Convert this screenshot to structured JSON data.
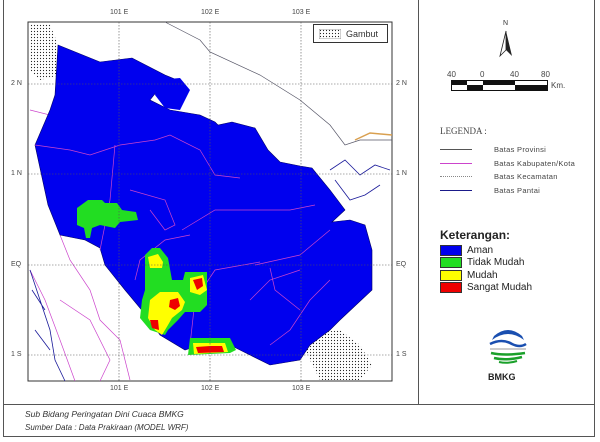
{
  "map": {
    "lon_labels": [
      "101 E",
      "102 E",
      "103 E"
    ],
    "lat_labels": [
      "2 N",
      "1 N",
      "EQ",
      "1 S"
    ],
    "inset_legend": {
      "label": "Gambut"
    }
  },
  "north_arrow": {
    "label": "N"
  },
  "scale_bar": {
    "ticks": [
      "40",
      "0",
      "40",
      "80"
    ],
    "unit": "Km."
  },
  "legenda": {
    "title": "LEGENDA :",
    "items": [
      {
        "label": "Batas Provinsi",
        "color": "#555555",
        "style": "solid"
      },
      {
        "label": "Batas Kabupaten/Kota",
        "color": "#cc44cc",
        "style": "solid"
      },
      {
        "label": "Batas Kecamatan",
        "color": "#888888",
        "style": "dotted"
      },
      {
        "label": "Batas Pantai",
        "color": "#1a1a8a",
        "style": "solid"
      }
    ]
  },
  "keterangan": {
    "title": "Keterangan:",
    "items": [
      {
        "label": "Aman",
        "color": "#0000ee"
      },
      {
        "label": "Tidak Mudah",
        "color": "#22dd22"
      },
      {
        "label": "Mudah",
        "color": "#ffff00"
      },
      {
        "label": "Sangat Mudah",
        "color": "#ee0000"
      }
    ]
  },
  "logo": {
    "text": "BMKG"
  },
  "footer": {
    "line1": "Sub Bidang Peringatan Dini Cuaca BMKG",
    "line2": "Sumber Data : Data Prakiraan (MODEL WRF)"
  }
}
